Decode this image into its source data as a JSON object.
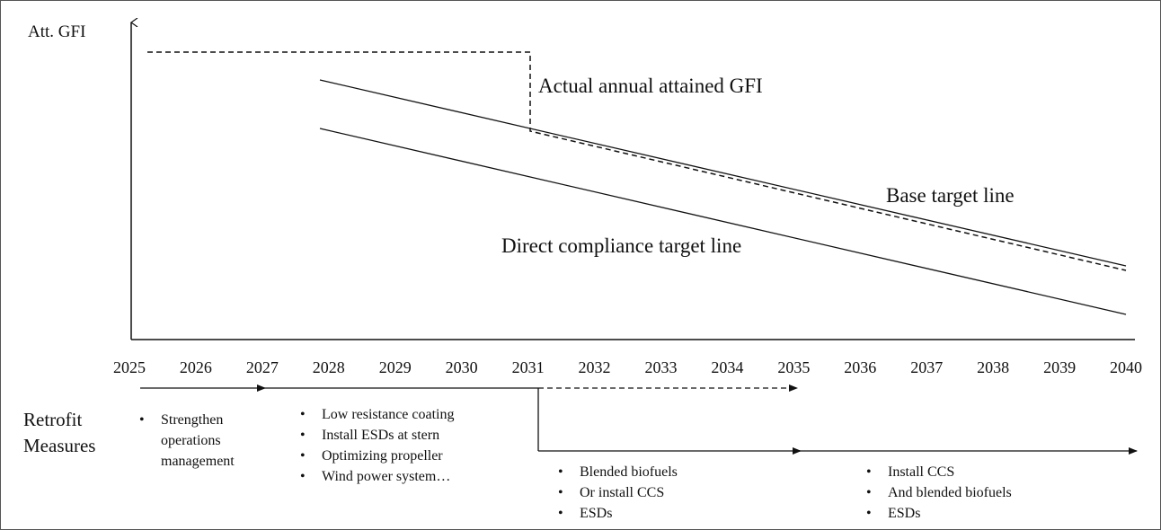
{
  "y_axis_label": "Att. GFI",
  "years": [
    "2025",
    "2026",
    "2027",
    "2028",
    "2029",
    "2030",
    "2031",
    "2032",
    "2033",
    "2034",
    "2035",
    "2036",
    "2037",
    "2038",
    "2039",
    "2040"
  ],
  "annotations": {
    "actual": "Actual annual attained GFI",
    "base": "Base target line",
    "direct": "Direct compliance target line"
  },
  "retrofit": {
    "label_line1": "Retrofit",
    "label_line2": "Measures",
    "groups": [
      {
        "items": [
          "Strengthen operations management"
        ]
      },
      {
        "items": [
          "Low resistance coating",
          "Install ESDs at stern",
          "Optimizing propeller",
          "Wind power system…"
        ]
      },
      {
        "items": [
          "Blended biofuels",
          "Or install CCS",
          "ESDs"
        ]
      },
      {
        "items": [
          "Install CCS",
          "And blended biofuels",
          "ESDs"
        ]
      }
    ]
  }
}
